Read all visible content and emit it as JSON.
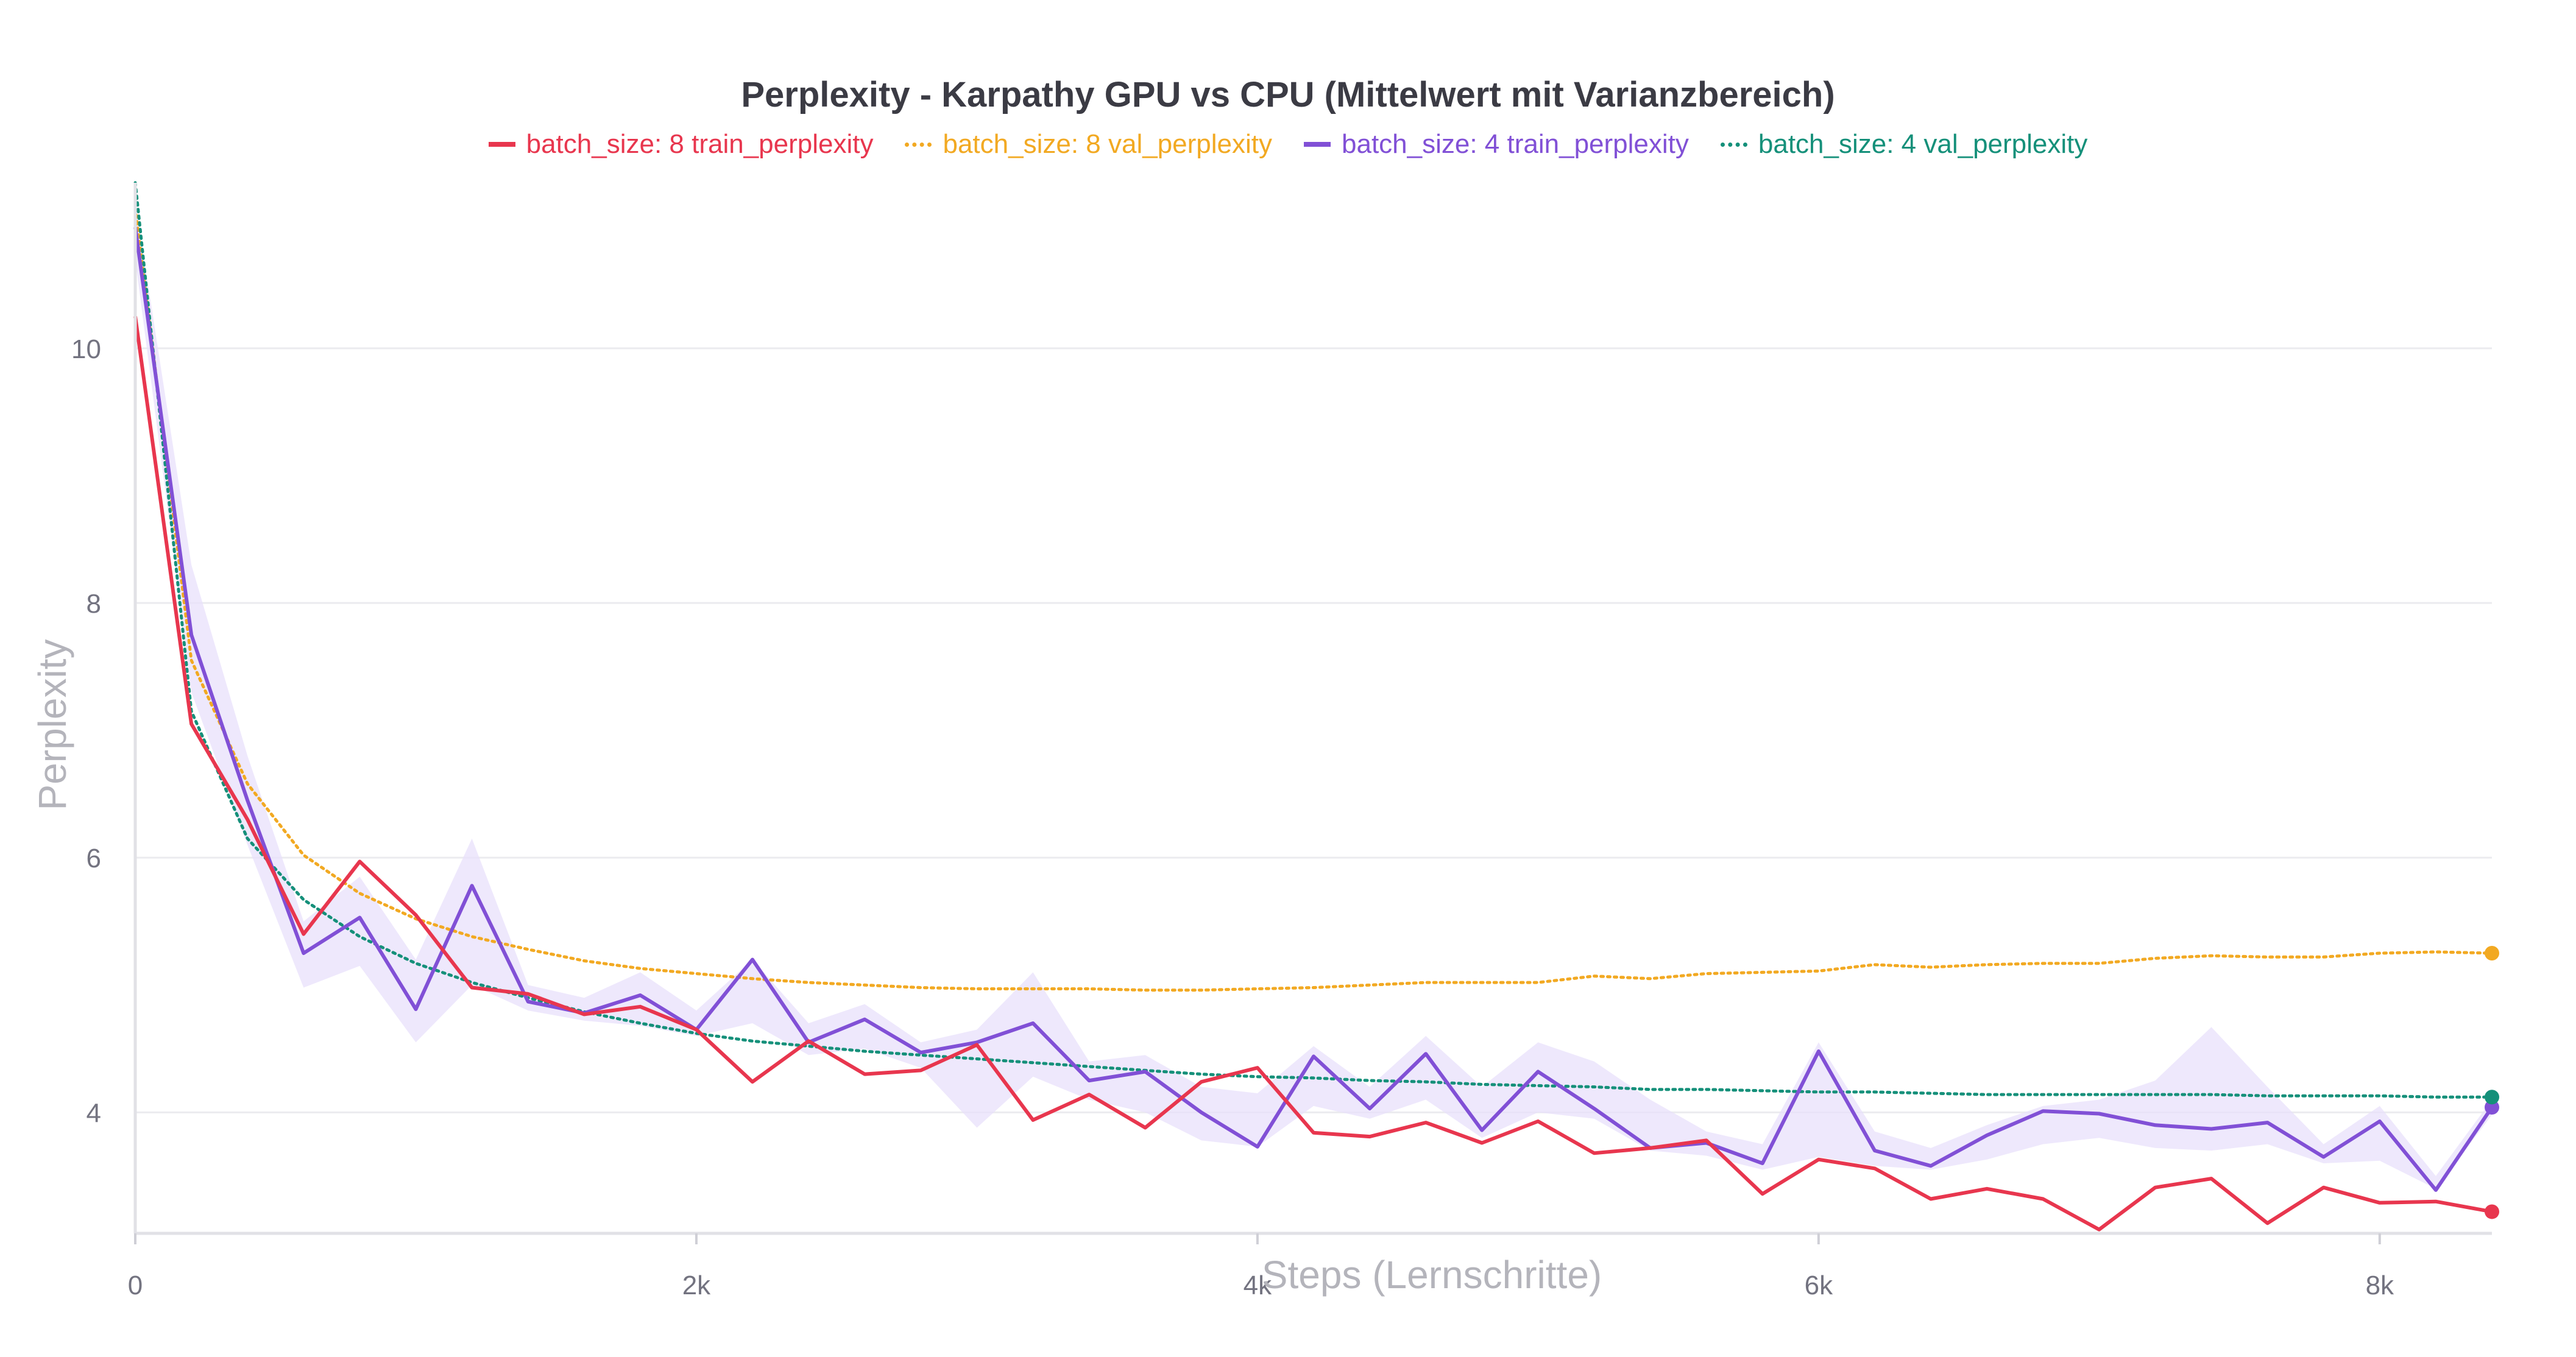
{
  "chart_data": {
    "type": "line",
    "title": "Perplexity - Karpathy GPU vs CPU (Mittelwert mit Varianzbereich)",
    "xlabel": "Steps (Lernschritte)",
    "ylabel": "Perplexity",
    "xlim": [
      0,
      8400
    ],
    "ylim": [
      3.05,
      11.3
    ],
    "x_ticks": [
      0,
      2000,
      4000,
      6000,
      8000
    ],
    "x_tick_labels": [
      "0",
      "2k",
      "4k",
      "6k",
      "8k"
    ],
    "y_ticks": [
      4,
      6,
      8,
      10
    ],
    "y_tick_labels": [
      "4",
      "6",
      "8",
      "10"
    ],
    "grid": true,
    "legend_position": "top-center",
    "series": [
      {
        "name": "batch_size: 8 train_perplexity",
        "color": "#e8364e",
        "style": "solid",
        "end_marker": true,
        "points": [
          [
            0,
            10.25
          ],
          [
            200,
            7.05
          ],
          [
            400,
            6.3
          ],
          [
            600,
            5.4
          ],
          [
            800,
            5.97
          ],
          [
            1000,
            5.55
          ],
          [
            1200,
            4.98
          ],
          [
            1400,
            4.93
          ],
          [
            1600,
            4.77
          ],
          [
            1800,
            4.83
          ],
          [
            2000,
            4.65
          ],
          [
            2200,
            4.24
          ],
          [
            2400,
            4.56
          ],
          [
            2600,
            4.3
          ],
          [
            2800,
            4.33
          ],
          [
            3000,
            4.53
          ],
          [
            3200,
            3.94
          ],
          [
            3400,
            4.14
          ],
          [
            3600,
            3.88
          ],
          [
            3800,
            4.24
          ],
          [
            4000,
            4.35
          ],
          [
            4200,
            3.84
          ],
          [
            4400,
            3.81
          ],
          [
            4600,
            3.92
          ],
          [
            4800,
            3.76
          ],
          [
            5000,
            3.93
          ],
          [
            5200,
            3.68
          ],
          [
            5400,
            3.72
          ],
          [
            5600,
            3.78
          ],
          [
            5800,
            3.36
          ],
          [
            6000,
            3.63
          ],
          [
            6200,
            3.56
          ],
          [
            6400,
            3.32
          ],
          [
            6600,
            3.4
          ],
          [
            6800,
            3.32
          ],
          [
            7000,
            3.08
          ],
          [
            7200,
            3.41
          ],
          [
            7400,
            3.48
          ],
          [
            7600,
            3.13
          ],
          [
            7800,
            3.41
          ],
          [
            8000,
            3.29
          ],
          [
            8200,
            3.3
          ],
          [
            8400,
            3.22
          ]
        ]
      },
      {
        "name": "batch_size: 8 val_perplexity",
        "color": "#f2a922",
        "style": "dotted",
        "end_marker": true,
        "points": [
          [
            0,
            11.1
          ],
          [
            200,
            7.55
          ],
          [
            400,
            6.58
          ],
          [
            600,
            6.02
          ],
          [
            800,
            5.72
          ],
          [
            1000,
            5.52
          ],
          [
            1200,
            5.38
          ],
          [
            1400,
            5.28
          ],
          [
            1600,
            5.19
          ],
          [
            1800,
            5.13
          ],
          [
            2000,
            5.09
          ],
          [
            2200,
            5.05
          ],
          [
            2400,
            5.02
          ],
          [
            2600,
            5.0
          ],
          [
            2800,
            4.98
          ],
          [
            3000,
            4.97
          ],
          [
            3200,
            4.97
          ],
          [
            3400,
            4.97
          ],
          [
            3600,
            4.96
          ],
          [
            3800,
            4.96
          ],
          [
            4000,
            4.97
          ],
          [
            4200,
            4.98
          ],
          [
            4400,
            5.0
          ],
          [
            4600,
            5.02
          ],
          [
            4800,
            5.02
          ],
          [
            5000,
            5.02
          ],
          [
            5200,
            5.07
          ],
          [
            5400,
            5.05
          ],
          [
            5600,
            5.09
          ],
          [
            5800,
            5.1
          ],
          [
            6000,
            5.11
          ],
          [
            6200,
            5.16
          ],
          [
            6400,
            5.14
          ],
          [
            6600,
            5.16
          ],
          [
            6800,
            5.17
          ],
          [
            7000,
            5.17
          ],
          [
            7200,
            5.21
          ],
          [
            7400,
            5.23
          ],
          [
            7600,
            5.22
          ],
          [
            7800,
            5.22
          ],
          [
            8000,
            5.25
          ],
          [
            8200,
            5.26
          ],
          [
            8400,
            5.25
          ]
        ]
      },
      {
        "name": "batch_size: 4 train_perplexity",
        "color": "#8150d6",
        "style": "solid",
        "end_marker": true,
        "band_color": "#e8e0fb",
        "points": [
          [
            0,
            10.95
          ],
          [
            200,
            7.75
          ],
          [
            400,
            6.45
          ],
          [
            600,
            5.25
          ],
          [
            800,
            5.53
          ],
          [
            1000,
            4.81
          ],
          [
            1200,
            5.78
          ],
          [
            1400,
            4.87
          ],
          [
            1600,
            4.78
          ],
          [
            1800,
            4.92
          ],
          [
            2000,
            4.65
          ],
          [
            2200,
            5.2
          ],
          [
            2400,
            4.55
          ],
          [
            2600,
            4.73
          ],
          [
            2800,
            4.47
          ],
          [
            3000,
            4.55
          ],
          [
            3200,
            4.7
          ],
          [
            3400,
            4.25
          ],
          [
            3600,
            4.32
          ],
          [
            3800,
            4.0
          ],
          [
            4000,
            3.73
          ],
          [
            4200,
            4.44
          ],
          [
            4400,
            4.03
          ],
          [
            4600,
            4.46
          ],
          [
            4800,
            3.86
          ],
          [
            5000,
            4.32
          ],
          [
            5200,
            4.03
          ],
          [
            5400,
            3.72
          ],
          [
            5600,
            3.76
          ],
          [
            5800,
            3.6
          ],
          [
            6000,
            4.48
          ],
          [
            6200,
            3.7
          ],
          [
            6400,
            3.58
          ],
          [
            6600,
            3.82
          ],
          [
            6800,
            4.01
          ],
          [
            7000,
            3.99
          ],
          [
            7200,
            3.9
          ],
          [
            7400,
            3.87
          ],
          [
            7600,
            3.92
          ],
          [
            7800,
            3.65
          ],
          [
            8000,
            3.93
          ],
          [
            8200,
            3.39
          ],
          [
            8400,
            4.04
          ]
        ],
        "band_low": [
          10.7,
          7.3,
          6.1,
          4.98,
          5.15,
          4.55,
          5.0,
          4.8,
          4.72,
          4.68,
          4.6,
          4.7,
          4.45,
          4.5,
          4.35,
          3.88,
          4.28,
          4.1,
          4.0,
          3.78,
          3.73,
          4.05,
          3.95,
          4.1,
          3.8,
          4.0,
          3.95,
          3.7,
          3.66,
          3.55,
          3.65,
          3.58,
          3.55,
          3.63,
          3.75,
          3.8,
          3.72,
          3.7,
          3.75,
          3.6,
          3.62,
          3.4,
          3.98
        ],
        "band_high": [
          11.15,
          8.3,
          6.8,
          5.5,
          5.85,
          5.2,
          6.15,
          5.0,
          4.9,
          5.1,
          4.8,
          5.2,
          4.7,
          4.85,
          4.55,
          4.65,
          5.1,
          4.4,
          4.45,
          4.2,
          4.15,
          4.52,
          4.2,
          4.6,
          4.2,
          4.55,
          4.4,
          4.1,
          3.85,
          3.75,
          4.55,
          3.85,
          3.72,
          3.9,
          4.05,
          4.1,
          4.25,
          4.67,
          4.2,
          3.75,
          4.05,
          3.5,
          4.1
        ]
      },
      {
        "name": "batch_size: 4 val_perplexity",
        "color": "#15907a",
        "style": "dotted",
        "end_marker": true,
        "points": [
          [
            0,
            11.3
          ],
          [
            200,
            7.15
          ],
          [
            400,
            6.15
          ],
          [
            600,
            5.67
          ],
          [
            800,
            5.38
          ],
          [
            1000,
            5.17
          ],
          [
            1200,
            5.02
          ],
          [
            1400,
            4.9
          ],
          [
            1600,
            4.79
          ],
          [
            1800,
            4.7
          ],
          [
            2000,
            4.62
          ],
          [
            2200,
            4.56
          ],
          [
            2400,
            4.52
          ],
          [
            2600,
            4.48
          ],
          [
            2800,
            4.45
          ],
          [
            3000,
            4.42
          ],
          [
            3200,
            4.39
          ],
          [
            3400,
            4.36
          ],
          [
            3600,
            4.33
          ],
          [
            3800,
            4.3
          ],
          [
            4000,
            4.28
          ],
          [
            4200,
            4.27
          ],
          [
            4400,
            4.25
          ],
          [
            4600,
            4.24
          ],
          [
            4800,
            4.22
          ],
          [
            5000,
            4.21
          ],
          [
            5200,
            4.2
          ],
          [
            5400,
            4.18
          ],
          [
            5600,
            4.18
          ],
          [
            5800,
            4.17
          ],
          [
            6000,
            4.16
          ],
          [
            6200,
            4.16
          ],
          [
            6400,
            4.15
          ],
          [
            6600,
            4.14
          ],
          [
            6800,
            4.14
          ],
          [
            7000,
            4.14
          ],
          [
            7200,
            4.14
          ],
          [
            7400,
            4.14
          ],
          [
            7600,
            4.13
          ],
          [
            7800,
            4.13
          ],
          [
            8000,
            4.13
          ],
          [
            8200,
            4.12
          ],
          [
            8400,
            4.12
          ]
        ]
      }
    ]
  }
}
